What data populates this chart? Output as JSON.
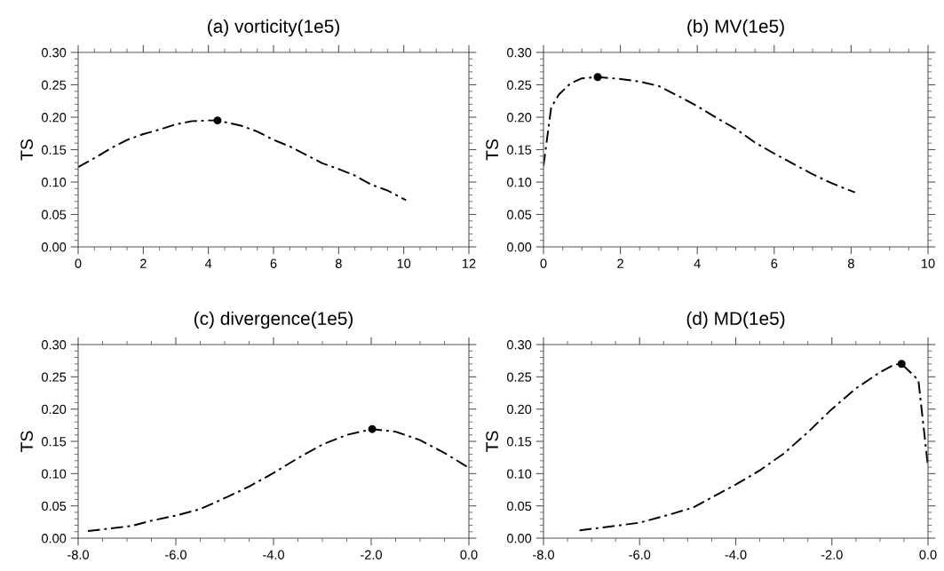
{
  "chart_data": [
    {
      "type": "line",
      "title": "(a) vorticity(1e5)",
      "ylabel": "TS",
      "line_style": "dashed",
      "grid": false,
      "legend": false,
      "xlim": [
        0,
        12
      ],
      "xticks": [
        0,
        2,
        4,
        6,
        8,
        10,
        12
      ],
      "ylim": [
        0,
        0.3
      ],
      "yticks": [
        {
          "value": 0,
          "label": "0.00"
        },
        {
          "value": 0.05,
          "label": "0.05"
        },
        {
          "value": 0.1,
          "label": "0.10"
        },
        {
          "value": 0.15,
          "label": "0.15"
        },
        {
          "value": 0.2,
          "label": "0.20"
        },
        {
          "value": 0.25,
          "label": "0.25"
        },
        {
          "value": 0.3,
          "label": "0.30"
        }
      ],
      "series": [
        {
          "color": "#000000",
          "x": [
            0,
            0.5,
            1,
            1.5,
            2,
            2.5,
            3,
            3.5,
            4,
            4.28,
            5,
            5.5,
            6,
            6.5,
            7,
            7.5,
            8,
            8.5,
            9,
            9.5,
            10.07
          ],
          "values": [
            0.123,
            0.137,
            0.152,
            0.165,
            0.174,
            0.181,
            0.189,
            0.194,
            0.195,
            0.195,
            0.187,
            0.178,
            0.165,
            0.155,
            0.142,
            0.129,
            0.12,
            0.11,
            0.096,
            0.087,
            0.072
          ]
        },
        {
          "type": "scatter",
          "marker": "circle",
          "color": "#000000",
          "x": [
            4.28
          ],
          "values": [
            0.195
          ]
        }
      ]
    },
    {
      "type": "line",
      "title": "(b) MV(1e5)",
      "ylabel": "TS",
      "line_style": "dashed",
      "grid": false,
      "legend": false,
      "xlim": [
        0,
        10
      ],
      "xticks": [
        0,
        2,
        4,
        6,
        8,
        10
      ],
      "ylim": [
        0,
        0.3
      ],
      "yticks": [
        {
          "value": 0,
          "label": "0.00"
        },
        {
          "value": 0.05,
          "label": "0.05"
        },
        {
          "value": 0.1,
          "label": "0.10"
        },
        {
          "value": 0.15,
          "label": "0.15"
        },
        {
          "value": 0.2,
          "label": "0.20"
        },
        {
          "value": 0.25,
          "label": "0.25"
        },
        {
          "value": 0.3,
          "label": "0.30"
        }
      ],
      "series": [
        {
          "color": "#000000",
          "x": [
            0,
            0.2,
            0.4,
            0.7,
            1.0,
            1.41,
            2,
            2.5,
            3,
            3.5,
            4,
            4.5,
            5,
            5.5,
            6,
            6.5,
            7,
            7.5,
            8.1
          ],
          "values": [
            0.125,
            0.215,
            0.235,
            0.252,
            0.26,
            0.262,
            0.259,
            0.255,
            0.248,
            0.233,
            0.217,
            0.199,
            0.182,
            0.161,
            0.144,
            0.128,
            0.112,
            0.098,
            0.084
          ]
        },
        {
          "type": "scatter",
          "marker": "circle",
          "color": "#000000",
          "x": [
            1.41
          ],
          "values": [
            0.262
          ]
        }
      ]
    },
    {
      "type": "line",
      "title": "(c) divergence(1e5)",
      "ylabel": "TS",
      "line_style": "dashed",
      "grid": false,
      "legend": false,
      "xlim": [
        -8,
        0
      ],
      "xticks": [
        {
          "value": -8,
          "label": "-8.0"
        },
        {
          "value": -6,
          "label": "-6.0"
        },
        {
          "value": -4,
          "label": "-4.0"
        },
        {
          "value": -2,
          "label": "-2.0"
        },
        {
          "value": 0,
          "label": "0.0"
        }
      ],
      "ylim": [
        0,
        0.3
      ],
      "yticks": [
        {
          "value": 0,
          "label": "0.00"
        },
        {
          "value": 0.05,
          "label": "0.05"
        },
        {
          "value": 0.1,
          "label": "0.10"
        },
        {
          "value": 0.15,
          "label": "0.15"
        },
        {
          "value": 0.2,
          "label": "0.20"
        },
        {
          "value": 0.25,
          "label": "0.25"
        },
        {
          "value": 0.3,
          "label": "0.30"
        }
      ],
      "series": [
        {
          "color": "#000000",
          "x": [
            -7.8,
            -6.9,
            -6.5,
            -6,
            -5.5,
            -5,
            -4.5,
            -4,
            -3.5,
            -3,
            -2.5,
            -1.98,
            -1.5,
            -1,
            -0.5,
            0
          ],
          "values": [
            0.011,
            0.019,
            0.027,
            0.035,
            0.045,
            0.062,
            0.08,
            0.101,
            0.124,
            0.145,
            0.16,
            0.169,
            0.165,
            0.152,
            0.132,
            0.109
          ]
        },
        {
          "type": "scatter",
          "marker": "circle",
          "color": "#000000",
          "x": [
            -1.98
          ],
          "values": [
            0.169
          ]
        }
      ]
    },
    {
      "type": "line",
      "title": "(d) MD(1e5)",
      "ylabel": "TS",
      "line_style": "dashed",
      "grid": false,
      "legend": false,
      "xlim": [
        -8,
        0
      ],
      "xticks": [
        {
          "value": -8,
          "label": "-8.0"
        },
        {
          "value": -6,
          "label": "-6.0"
        },
        {
          "value": -4,
          "label": "-4.0"
        },
        {
          "value": -2,
          "label": "-2.0"
        },
        {
          "value": 0,
          "label": "0.0"
        }
      ],
      "ylim": [
        0,
        0.3
      ],
      "yticks": [
        {
          "value": 0,
          "label": "0.00"
        },
        {
          "value": 0.05,
          "label": "0.05"
        },
        {
          "value": 0.1,
          "label": "0.10"
        },
        {
          "value": 0.15,
          "label": "0.15"
        },
        {
          "value": 0.2,
          "label": "0.20"
        },
        {
          "value": 0.25,
          "label": "0.25"
        },
        {
          "value": 0.3,
          "label": "0.30"
        }
      ],
      "series": [
        {
          "color": "#000000",
          "x": [
            -7.25,
            -6.5,
            -6,
            -5.5,
            -4.9,
            -4.5,
            -4,
            -3.5,
            -3,
            -2.5,
            -2,
            -1.5,
            -1,
            -0.7,
            -0.55,
            -0.2,
            0
          ],
          "values": [
            0.012,
            0.019,
            0.024,
            0.034,
            0.047,
            0.063,
            0.083,
            0.105,
            0.131,
            0.164,
            0.2,
            0.232,
            0.257,
            0.269,
            0.27,
            0.245,
            0.11
          ]
        },
        {
          "type": "scatter",
          "marker": "circle",
          "color": "#000000",
          "x": [
            -0.55
          ],
          "values": [
            0.27
          ]
        }
      ]
    }
  ]
}
